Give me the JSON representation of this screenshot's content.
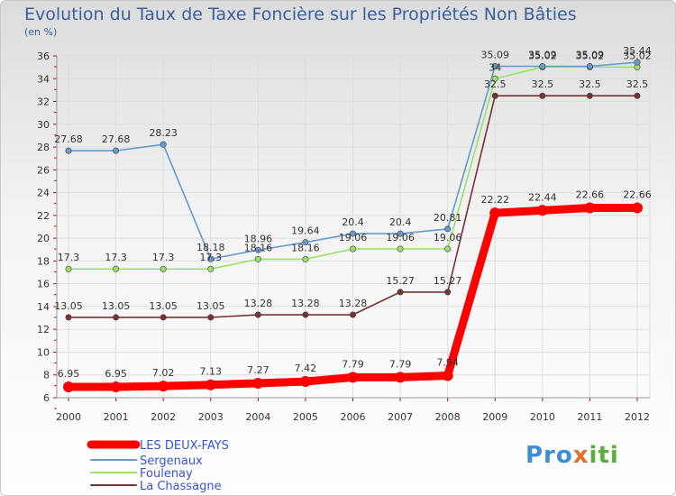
{
  "chart_data": {
    "type": "line",
    "title": "Evolution du Taux de Taxe Foncière sur les Propriétés Non Bâties",
    "subtitle": "(en %)",
    "xlabel": "",
    "ylabel": "",
    "x": [
      "2000",
      "2001",
      "2002",
      "2003",
      "2004",
      "2005",
      "2006",
      "2007",
      "2008",
      "2009",
      "2010",
      "2011",
      "2012"
    ],
    "ylim": [
      6,
      36
    ],
    "yticks": [
      6,
      8,
      10,
      12,
      14,
      16,
      18,
      20,
      22,
      24,
      26,
      28,
      30,
      32,
      34,
      36
    ],
    "grid": true,
    "series": [
      {
        "name": "LES DEUX-FAYS",
        "color": "#ff0000",
        "values": [
          6.95,
          6.95,
          7.02,
          7.13,
          7.27,
          7.42,
          7.79,
          7.79,
          7.94,
          22.22,
          22.44,
          22.66,
          22.66
        ],
        "labels": [
          "6.95",
          "6.95",
          "7.02",
          "7.13",
          "7.27",
          "7.42",
          "7.79",
          "7.79",
          "7.94",
          "22.22",
          "22.44",
          "22.66",
          "22.66"
        ]
      },
      {
        "name": "Sergenaux",
        "color": "#6699cc",
        "values": [
          27.68,
          27.68,
          28.23,
          18.18,
          18.96,
          19.64,
          20.4,
          20.4,
          20.81,
          35.09,
          35.09,
          35.09,
          35.44
        ],
        "labels": [
          "27.68",
          "27.68",
          "28.23",
          "18.18",
          "18.96",
          "19.64",
          "20.4",
          "20.4",
          "20.81",
          "35.09",
          "35.09",
          "35.09",
          "35.44"
        ]
      },
      {
        "name": "Foulenay",
        "color": "#99e066",
        "values": [
          17.3,
          17.3,
          17.3,
          17.3,
          18.16,
          18.16,
          19.06,
          19.06,
          19.06,
          34,
          35.02,
          35.02,
          35.02
        ],
        "labels": [
          "17.3",
          "17.3",
          "17.3",
          "17.3",
          "18.16",
          "18.16",
          "19.06",
          "19.06",
          "19.06",
          "34",
          "35.02",
          "35.02",
          "35.02"
        ]
      },
      {
        "name": "La Chassagne",
        "color": "#773333",
        "values": [
          13.05,
          13.05,
          13.05,
          13.05,
          13.28,
          13.28,
          13.28,
          15.27,
          15.27,
          32.5,
          32.5,
          32.5,
          32.5
        ],
        "labels": [
          "13.05",
          "13.05",
          "13.05",
          "13.05",
          "13.28",
          "13.28",
          "13.28",
          "15.27",
          "15.27",
          "32.5",
          "32.5",
          "32.5",
          "32.5"
        ]
      }
    ]
  },
  "legend": {
    "items": [
      "LES DEUX-FAYS",
      "Sergenaux",
      "Foulenay",
      "La Chassagne"
    ]
  },
  "logo": {
    "p1": "Pro",
    "p2": "x",
    "p3": "iti"
  }
}
